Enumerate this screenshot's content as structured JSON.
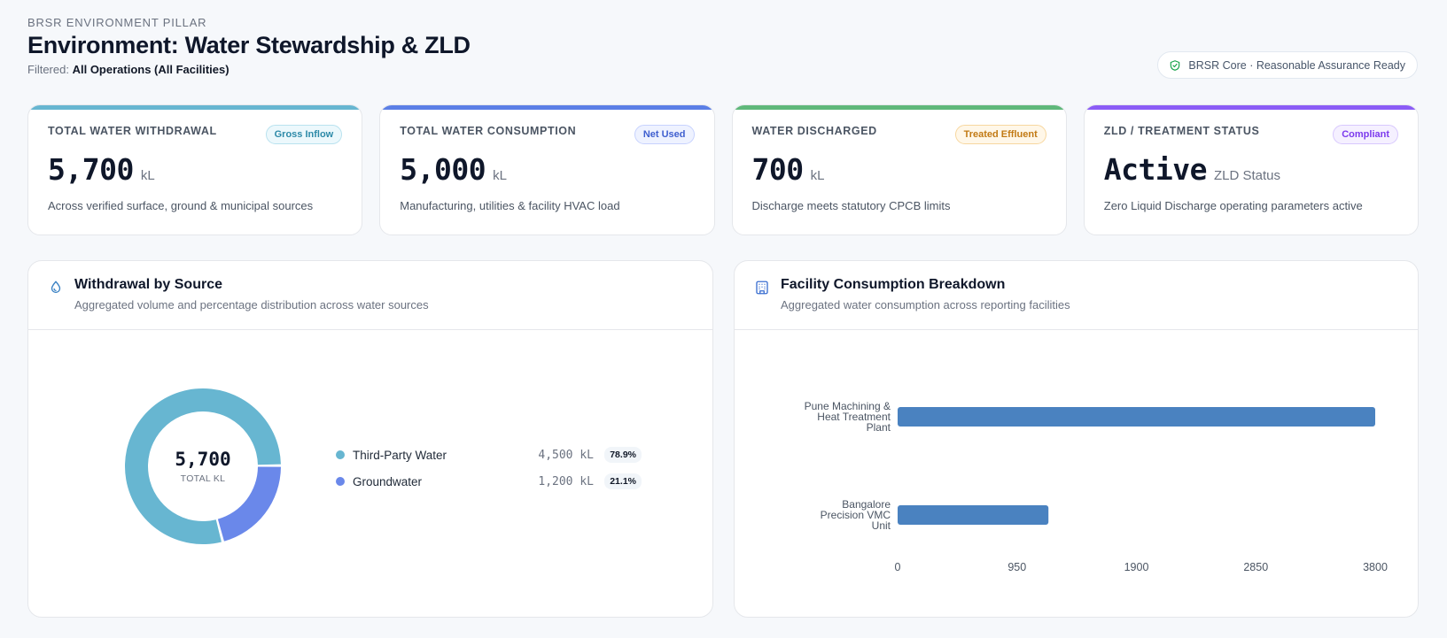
{
  "header": {
    "eyebrow": "BRSR ENVIRONMENT PILLAR",
    "title": "Environment: Water Stewardship & ZLD",
    "filter_label": "Filtered:",
    "filter_value": "All Operations (All Facilities)"
  },
  "assurance_badge": {
    "label": "BRSR Core · Reasonable Assurance Ready",
    "icon": "shield-check-icon",
    "color": "#16a34a"
  },
  "kpis": [
    {
      "label": "TOTAL WATER WITHDRAWAL",
      "badge": "Gross Inflow",
      "value": "5,700",
      "unit": "kL",
      "desc": "Across verified surface, ground & municipal sources",
      "accent": "#67b6d1",
      "badge_fg": "#2d8aa8",
      "badge_bg": "#ecf8fc",
      "badge_border": "#b9e2ef"
    },
    {
      "label": "TOTAL WATER CONSUMPTION",
      "badge": "Net Used",
      "value": "5,000",
      "unit": "kL",
      "desc": "Manufacturing, utilities & facility HVAC load",
      "accent": "#5b7fe6",
      "badge_fg": "#3f5fcf",
      "badge_bg": "#eef2ff",
      "badge_border": "#c7d2fe"
    },
    {
      "label": "WATER DISCHARGED",
      "badge": "Treated Effluent",
      "value": "700",
      "unit": "kL",
      "desc": "Discharge meets statutory CPCB limits",
      "accent": "#5fb87a",
      "badge_fg": "#c27a14",
      "badge_bg": "#fff7e8",
      "badge_border": "#f7d79f"
    },
    {
      "label": "ZLD / TREATMENT STATUS",
      "badge": "Compliant",
      "value": "Active",
      "unit": "ZLD Status",
      "desc": "Zero Liquid Discharge operating parameters active",
      "accent": "#8b5cf6",
      "badge_fg": "#7c3aed",
      "badge_bg": "#f5f0ff",
      "badge_border": "#d8c8fd"
    }
  ],
  "withdrawal_panel": {
    "title": "Withdrawal by Source",
    "subtitle": "Aggregated volume and percentage distribution across water sources",
    "icon": "water-drop-icon",
    "center_value": "5,700",
    "center_caption": "TOTAL KL",
    "sources": [
      {
        "name": "Third-Party Water",
        "value_label": "4,500 kL",
        "pct": "78.9%",
        "color": "#67b6d1"
      },
      {
        "name": "Groundwater",
        "value_label": "1,200 kL",
        "pct": "21.1%",
        "color": "#6a88ea"
      }
    ]
  },
  "facility_panel": {
    "title": "Facility Consumption Breakdown",
    "subtitle": "Aggregated water consumption across reporting facilities",
    "icon": "building-icon"
  },
  "chart_data": [
    {
      "type": "pie",
      "categories": [
        "Third-Party Water",
        "Groundwater"
      ],
      "values": [
        4500,
        1200
      ],
      "colors": [
        "#67b6d1",
        "#6a88ea"
      ]
    },
    {
      "type": "bar",
      "orientation": "horizontal",
      "categories": [
        [
          "Pune Machining &",
          "Heat Treatment",
          "Plant"
        ],
        [
          "Bangalore",
          "Precision VMC",
          "Unit"
        ]
      ],
      "values": [
        3800,
        1200
      ],
      "xticks": [
        "0",
        "950",
        "1900",
        "2850",
        "3800"
      ],
      "xlim": [
        0,
        3800
      ],
      "color": "#4a82c0",
      "grid": false
    }
  ]
}
